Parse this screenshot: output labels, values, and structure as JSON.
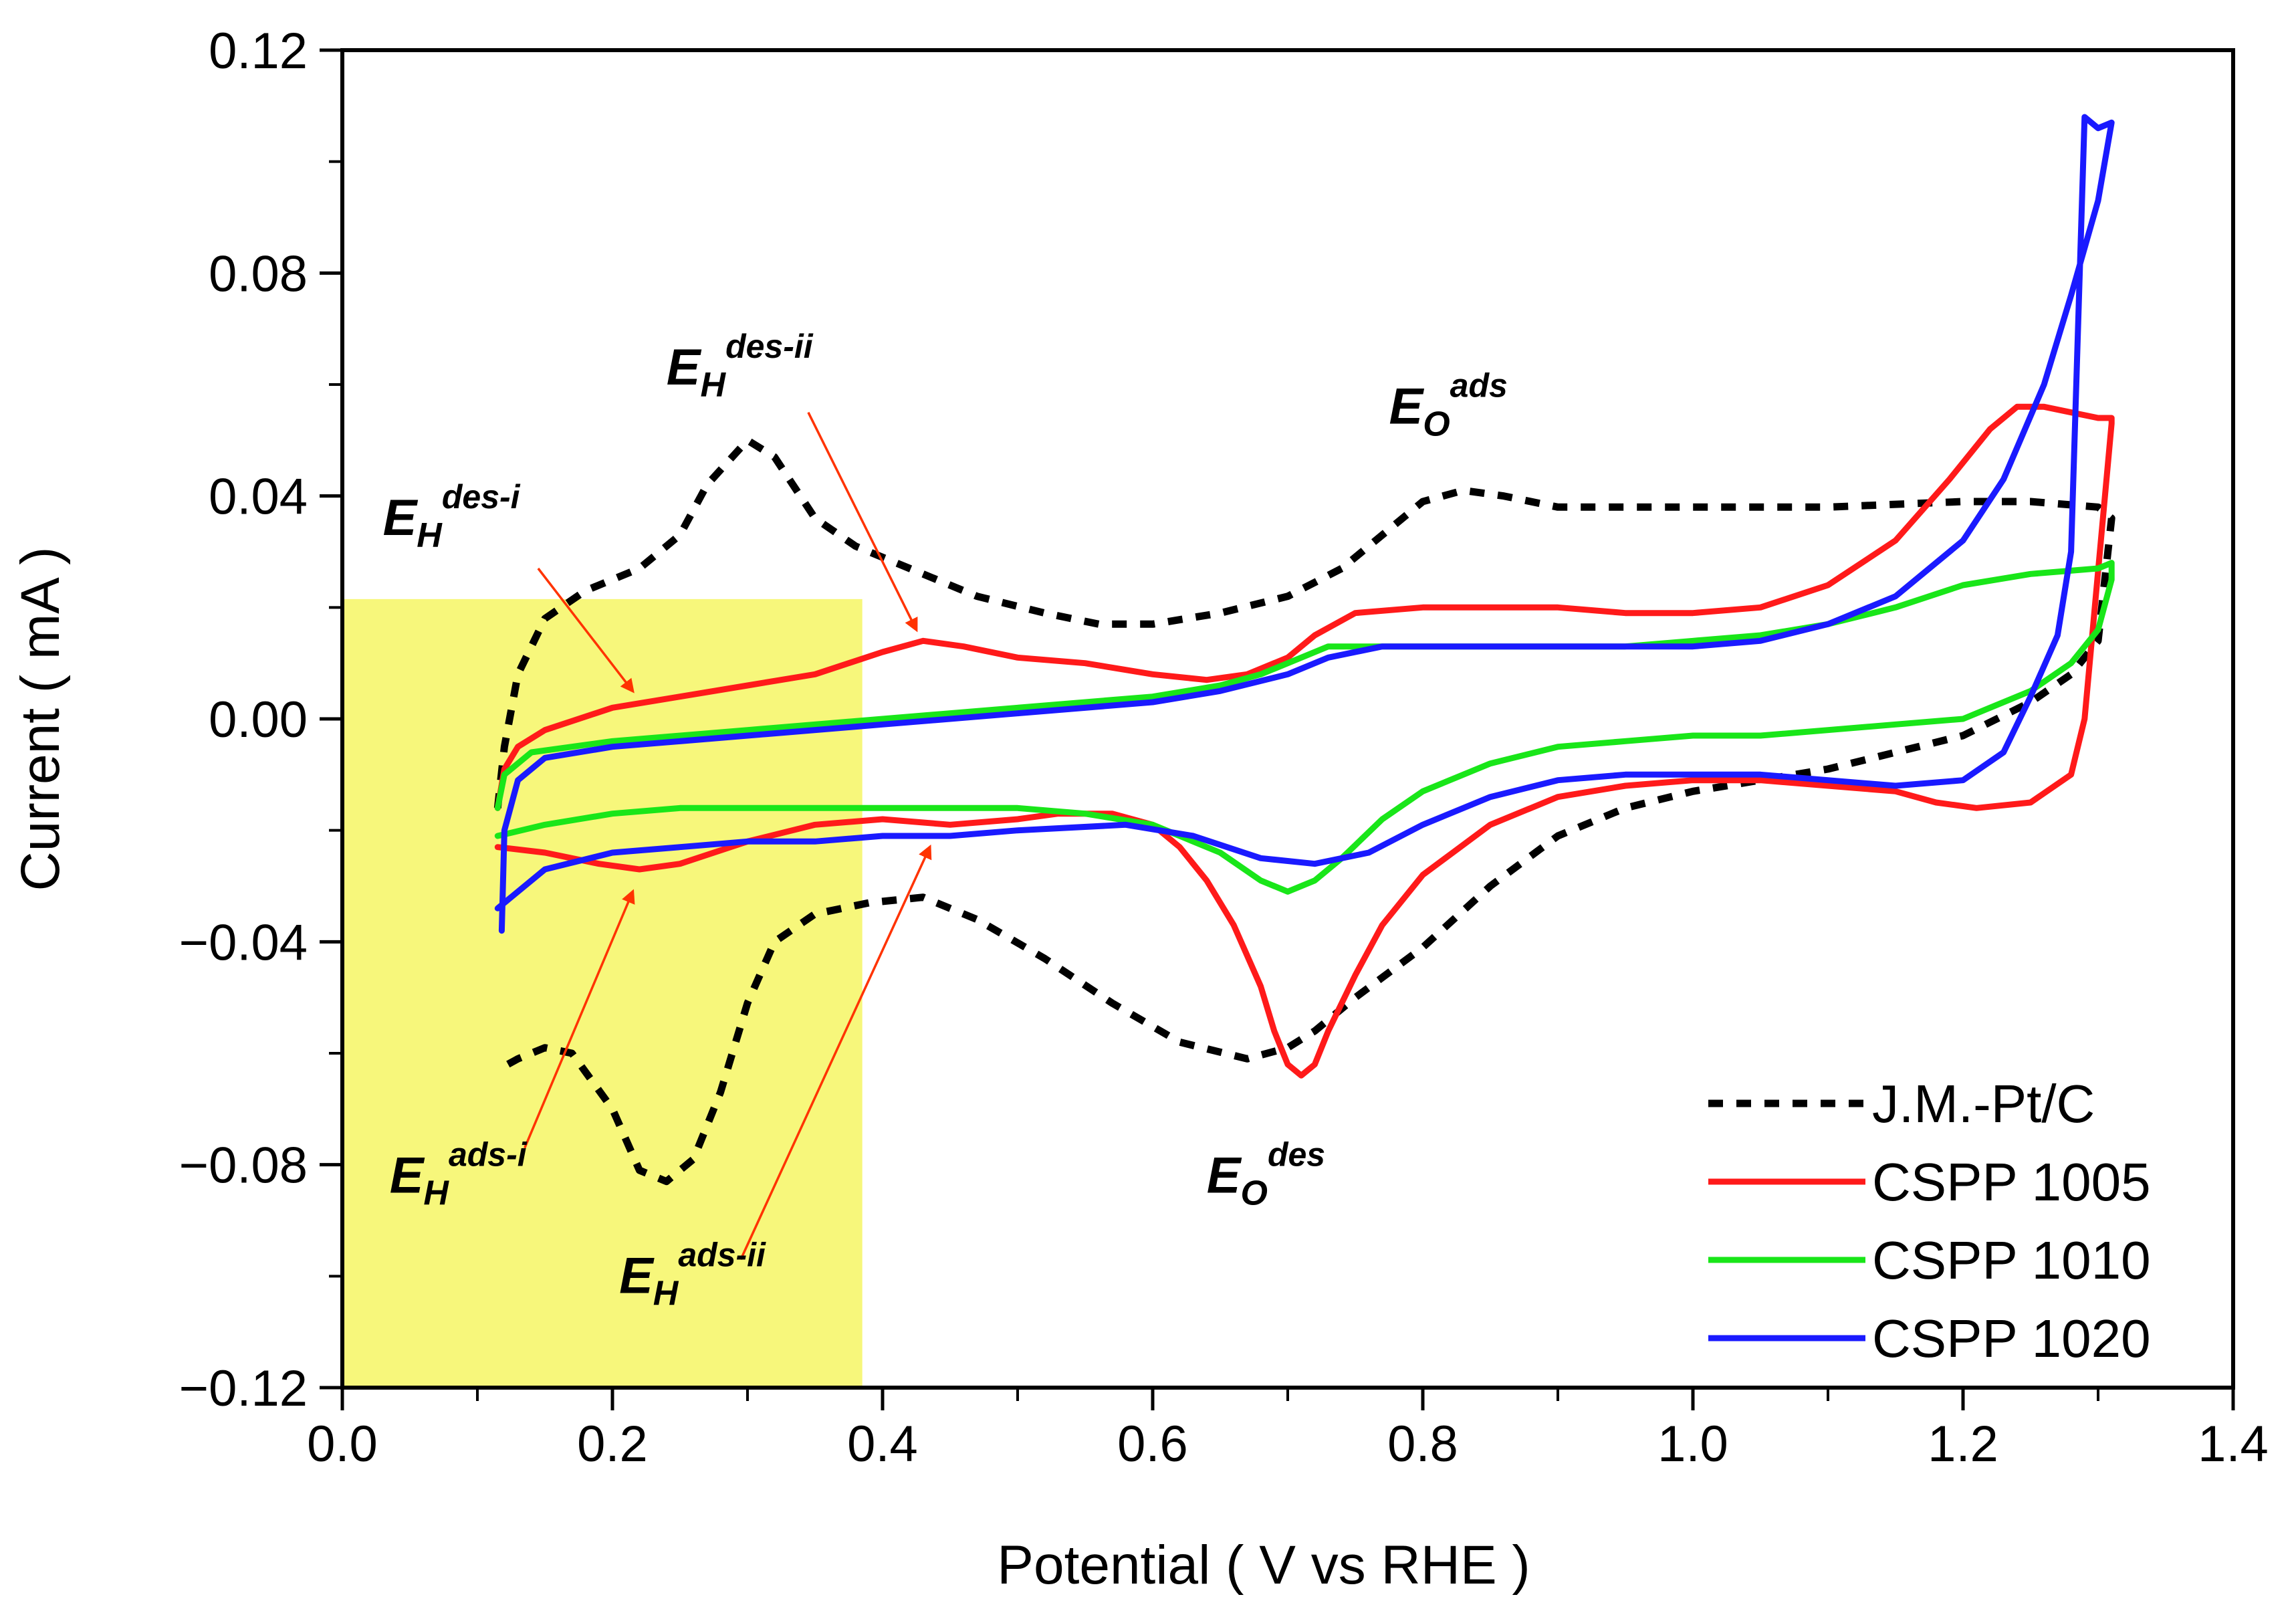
{
  "chart_data": {
    "type": "line",
    "title": "",
    "xlabel": "Potential ( V vs RHE )",
    "ylabel": "Current ( mA )",
    "xlim": [
      0.0,
      1.4
    ],
    "ylim": [
      -0.12,
      0.12
    ],
    "xticks": [
      0.0,
      0.2,
      0.4,
      0.6,
      0.8,
      1.0,
      1.2,
      1.4
    ],
    "xtick_labels": [
      "0.0",
      "0.2",
      "0.4",
      "0.6",
      "0.8",
      "1.0",
      "1.2",
      "1.4"
    ],
    "yticks": [
      0.12,
      0.08,
      0.04,
      0.0,
      -0.04,
      -0.08,
      -0.12
    ],
    "ytick_labels": [
      "0.12",
      "0.08",
      "0.04",
      "0.00",
      "−0.04",
      "−0.08",
      "−0.12"
    ],
    "grid": false,
    "legend_position": "bottom-right",
    "highlight_region": {
      "x": [
        0.0,
        0.385
      ],
      "y": [
        -0.12,
        0.0215
      ],
      "color": "#f7f77b"
    },
    "series": [
      {
        "name": "J.M.-Pt/C",
        "color": "#000000",
        "dash": "dashed",
        "points": [
          [
            0.115,
            -0.016
          ],
          [
            0.12,
            -0.005
          ],
          [
            0.13,
            0.008
          ],
          [
            0.15,
            0.018
          ],
          [
            0.18,
            0.023
          ],
          [
            0.22,
            0.027
          ],
          [
            0.25,
            0.033
          ],
          [
            0.27,
            0.042
          ],
          [
            0.3,
            0.05
          ],
          [
            0.32,
            0.047
          ],
          [
            0.35,
            0.036
          ],
          [
            0.38,
            0.031
          ],
          [
            0.42,
            0.027
          ],
          [
            0.47,
            0.022
          ],
          [
            0.52,
            0.019
          ],
          [
            0.56,
            0.017
          ],
          [
            0.6,
            0.017
          ],
          [
            0.65,
            0.019
          ],
          [
            0.7,
            0.022
          ],
          [
            0.74,
            0.027
          ],
          [
            0.77,
            0.033
          ],
          [
            0.8,
            0.039
          ],
          [
            0.83,
            0.041
          ],
          [
            0.86,
            0.04
          ],
          [
            0.9,
            0.038
          ],
          [
            0.95,
            0.038
          ],
          [
            1.0,
            0.038
          ],
          [
            1.1,
            0.038
          ],
          [
            1.2,
            0.039
          ],
          [
            1.25,
            0.039
          ],
          [
            1.3,
            0.038
          ],
          [
            1.31,
            0.036
          ],
          [
            1.3,
            0.014
          ],
          [
            1.28,
            0.008
          ],
          [
            1.25,
            0.003
          ],
          [
            1.2,
            -0.003
          ],
          [
            1.15,
            -0.006
          ],
          [
            1.1,
            -0.009
          ],
          [
            1.05,
            -0.011
          ],
          [
            1.0,
            -0.013
          ],
          [
            0.95,
            -0.016
          ],
          [
            0.9,
            -0.021
          ],
          [
            0.85,
            -0.03
          ],
          [
            0.8,
            -0.041
          ],
          [
            0.75,
            -0.05
          ],
          [
            0.72,
            -0.056
          ],
          [
            0.7,
            -0.059
          ],
          [
            0.67,
            -0.061
          ],
          [
            0.62,
            -0.058
          ],
          [
            0.57,
            -0.051
          ],
          [
            0.52,
            -0.043
          ],
          [
            0.47,
            -0.036
          ],
          [
            0.43,
            -0.032
          ],
          [
            0.39,
            -0.033
          ],
          [
            0.35,
            -0.035
          ],
          [
            0.32,
            -0.04
          ],
          [
            0.3,
            -0.051
          ],
          [
            0.28,
            -0.067
          ],
          [
            0.26,
            -0.079
          ],
          [
            0.24,
            -0.083
          ],
          [
            0.22,
            -0.081
          ],
          [
            0.2,
            -0.07
          ],
          [
            0.17,
            -0.06
          ],
          [
            0.15,
            -0.059
          ],
          [
            0.13,
            -0.061
          ],
          [
            0.115,
            -0.063
          ]
        ]
      },
      {
        "name": "CSPP 1005",
        "color": "#ff1a1a",
        "dash": "solid",
        "points": [
          [
            0.115,
            -0.016
          ],
          [
            0.12,
            -0.009
          ],
          [
            0.13,
            -0.005
          ],
          [
            0.15,
            -0.002
          ],
          [
            0.2,
            0.002
          ],
          [
            0.25,
            0.004
          ],
          [
            0.3,
            0.006
          ],
          [
            0.35,
            0.008
          ],
          [
            0.4,
            0.012
          ],
          [
            0.43,
            0.014
          ],
          [
            0.46,
            0.013
          ],
          [
            0.5,
            0.011
          ],
          [
            0.55,
            0.01
          ],
          [
            0.6,
            0.008
          ],
          [
            0.64,
            0.007
          ],
          [
            0.67,
            0.008
          ],
          [
            0.7,
            0.011
          ],
          [
            0.72,
            0.015
          ],
          [
            0.75,
            0.019
          ],
          [
            0.8,
            0.02
          ],
          [
            0.85,
            0.02
          ],
          [
            0.9,
            0.02
          ],
          [
            0.95,
            0.019
          ],
          [
            1.0,
            0.019
          ],
          [
            1.05,
            0.02
          ],
          [
            1.1,
            0.024
          ],
          [
            1.15,
            0.032
          ],
          [
            1.19,
            0.043
          ],
          [
            1.22,
            0.052
          ],
          [
            1.24,
            0.056
          ],
          [
            1.26,
            0.056
          ],
          [
            1.28,
            0.055
          ],
          [
            1.3,
            0.054
          ],
          [
            1.31,
            0.054
          ],
          [
            1.31,
            0.053
          ],
          [
            1.29,
            0.0
          ],
          [
            1.28,
            -0.01
          ],
          [
            1.25,
            -0.015
          ],
          [
            1.21,
            -0.016
          ],
          [
            1.18,
            -0.015
          ],
          [
            1.15,
            -0.013
          ],
          [
            1.1,
            -0.012
          ],
          [
            1.05,
            -0.011
          ],
          [
            1.0,
            -0.011
          ],
          [
            0.95,
            -0.012
          ],
          [
            0.9,
            -0.014
          ],
          [
            0.85,
            -0.019
          ],
          [
            0.8,
            -0.028
          ],
          [
            0.77,
            -0.037
          ],
          [
            0.75,
            -0.046
          ],
          [
            0.73,
            -0.056
          ],
          [
            0.72,
            -0.062
          ],
          [
            0.71,
            -0.064
          ],
          [
            0.7,
            -0.062
          ],
          [
            0.69,
            -0.056
          ],
          [
            0.68,
            -0.048
          ],
          [
            0.66,
            -0.037
          ],
          [
            0.64,
            -0.029
          ],
          [
            0.62,
            -0.023
          ],
          [
            0.6,
            -0.019
          ],
          [
            0.57,
            -0.017
          ],
          [
            0.53,
            -0.017
          ],
          [
            0.5,
            -0.018
          ],
          [
            0.45,
            -0.019
          ],
          [
            0.4,
            -0.018
          ],
          [
            0.35,
            -0.019
          ],
          [
            0.3,
            -0.022
          ],
          [
            0.25,
            -0.026
          ],
          [
            0.22,
            -0.027
          ],
          [
            0.19,
            -0.026
          ],
          [
            0.15,
            -0.024
          ],
          [
            0.115,
            -0.023
          ]
        ]
      },
      {
        "name": "CSPP 1010",
        "color": "#19e619",
        "dash": "solid",
        "points": [
          [
            0.115,
            -0.016
          ],
          [
            0.12,
            -0.01
          ],
          [
            0.14,
            -0.006
          ],
          [
            0.2,
            -0.004
          ],
          [
            0.3,
            -0.002
          ],
          [
            0.4,
            0.0
          ],
          [
            0.5,
            0.002
          ],
          [
            0.6,
            0.004
          ],
          [
            0.65,
            0.006
          ],
          [
            0.68,
            0.008
          ],
          [
            0.7,
            0.01
          ],
          [
            0.73,
            0.013
          ],
          [
            0.77,
            0.013
          ],
          [
            0.82,
            0.013
          ],
          [
            0.88,
            0.013
          ],
          [
            0.95,
            0.013
          ],
          [
            1.0,
            0.014
          ],
          [
            1.05,
            0.015
          ],
          [
            1.1,
            0.017
          ],
          [
            1.15,
            0.02
          ],
          [
            1.2,
            0.024
          ],
          [
            1.25,
            0.026
          ],
          [
            1.3,
            0.027
          ],
          [
            1.31,
            0.028
          ],
          [
            1.31,
            0.025
          ],
          [
            1.3,
            0.016
          ],
          [
            1.28,
            0.01
          ],
          [
            1.25,
            0.005
          ],
          [
            1.22,
            0.002
          ],
          [
            1.2,
            0.0
          ],
          [
            1.15,
            -0.001
          ],
          [
            1.1,
            -0.002
          ],
          [
            1.05,
            -0.003
          ],
          [
            1.0,
            -0.003
          ],
          [
            0.95,
            -0.004
          ],
          [
            0.9,
            -0.005
          ],
          [
            0.85,
            -0.008
          ],
          [
            0.8,
            -0.013
          ],
          [
            0.77,
            -0.018
          ],
          [
            0.74,
            -0.025
          ],
          [
            0.72,
            -0.029
          ],
          [
            0.7,
            -0.031
          ],
          [
            0.68,
            -0.029
          ],
          [
            0.65,
            -0.024
          ],
          [
            0.6,
            -0.019
          ],
          [
            0.55,
            -0.017
          ],
          [
            0.5,
            -0.016
          ],
          [
            0.45,
            -0.016
          ],
          [
            0.4,
            -0.016
          ],
          [
            0.35,
            -0.016
          ],
          [
            0.3,
            -0.016
          ],
          [
            0.25,
            -0.016
          ],
          [
            0.2,
            -0.017
          ],
          [
            0.15,
            -0.019
          ],
          [
            0.115,
            -0.021
          ]
        ]
      },
      {
        "name": "CSPP 1020",
        "color": "#1a1aff",
        "dash": "solid",
        "points": [
          [
            0.118,
            -0.038
          ],
          [
            0.12,
            -0.02
          ],
          [
            0.13,
            -0.011
          ],
          [
            0.15,
            -0.007
          ],
          [
            0.2,
            -0.005
          ],
          [
            0.3,
            -0.003
          ],
          [
            0.4,
            -0.001
          ],
          [
            0.5,
            0.001
          ],
          [
            0.6,
            0.003
          ],
          [
            0.65,
            0.005
          ],
          [
            0.7,
            0.008
          ],
          [
            0.73,
            0.011
          ],
          [
            0.77,
            0.013
          ],
          [
            0.82,
            0.013
          ],
          [
            0.88,
            0.013
          ],
          [
            0.95,
            0.013
          ],
          [
            1.0,
            0.013
          ],
          [
            1.05,
            0.014
          ],
          [
            1.1,
            0.017
          ],
          [
            1.15,
            0.022
          ],
          [
            1.2,
            0.032
          ],
          [
            1.23,
            0.043
          ],
          [
            1.26,
            0.06
          ],
          [
            1.28,
            0.076
          ],
          [
            1.3,
            0.093
          ],
          [
            1.31,
            0.107
          ],
          [
            1.3,
            0.106
          ],
          [
            1.29,
            0.108
          ],
          [
            1.28,
            0.03
          ],
          [
            1.27,
            0.015
          ],
          [
            1.25,
            0.004
          ],
          [
            1.23,
            -0.006
          ],
          [
            1.2,
            -0.011
          ],
          [
            1.15,
            -0.012
          ],
          [
            1.1,
            -0.011
          ],
          [
            1.05,
            -0.01
          ],
          [
            1.0,
            -0.01
          ],
          [
            0.95,
            -0.01
          ],
          [
            0.9,
            -0.011
          ],
          [
            0.85,
            -0.014
          ],
          [
            0.8,
            -0.019
          ],
          [
            0.76,
            -0.024
          ],
          [
            0.72,
            -0.026
          ],
          [
            0.68,
            -0.025
          ],
          [
            0.63,
            -0.021
          ],
          [
            0.58,
            -0.019
          ],
          [
            0.5,
            -0.02
          ],
          [
            0.45,
            -0.021
          ],
          [
            0.4,
            -0.021
          ],
          [
            0.35,
            -0.022
          ],
          [
            0.3,
            -0.022
          ],
          [
            0.25,
            -0.023
          ],
          [
            0.2,
            -0.024
          ],
          [
            0.15,
            -0.027
          ],
          [
            0.115,
            -0.034
          ]
        ]
      }
    ],
    "annotations": [
      {
        "id": "h-des-i",
        "main": "E",
        "sub": "H",
        "sup": "des-i",
        "at": [
          0.03,
          0.033
        ],
        "arrow_from": [
          0.145,
          0.027
        ],
        "arrow_to": [
          0.215,
          0.005
        ]
      },
      {
        "id": "h-des-ii",
        "main": "E",
        "sub": "H",
        "sup": "des-ii",
        "at": [
          0.24,
          0.06
        ],
        "arrow_from": [
          0.345,
          0.055
        ],
        "arrow_to": [
          0.425,
          0.016
        ]
      },
      {
        "id": "o-ads",
        "main": "E",
        "sub": "O",
        "sup": "ads",
        "at": [
          0.775,
          0.053
        ],
        "arrow_from": null,
        "arrow_to": null
      },
      {
        "id": "h-ads-i",
        "main": "E",
        "sub": "H",
        "sup": "ads-i",
        "at": [
          0.035,
          -0.085
        ],
        "arrow_from": [
          0.135,
          -0.077
        ],
        "arrow_to": [
          0.215,
          -0.031
        ]
      },
      {
        "id": "h-ads-ii",
        "main": "E",
        "sub": "H",
        "sup": "ads-ii",
        "at": [
          0.205,
          -0.103
        ],
        "arrow_from": [
          0.295,
          -0.097
        ],
        "arrow_to": [
          0.435,
          -0.023
        ]
      },
      {
        "id": "o-des",
        "main": "E",
        "sub": "O",
        "sup": "des",
        "at": [
          0.64,
          -0.085
        ],
        "arrow_from": null,
        "arrow_to": null
      }
    ],
    "arrow_color": "#ff3300"
  }
}
